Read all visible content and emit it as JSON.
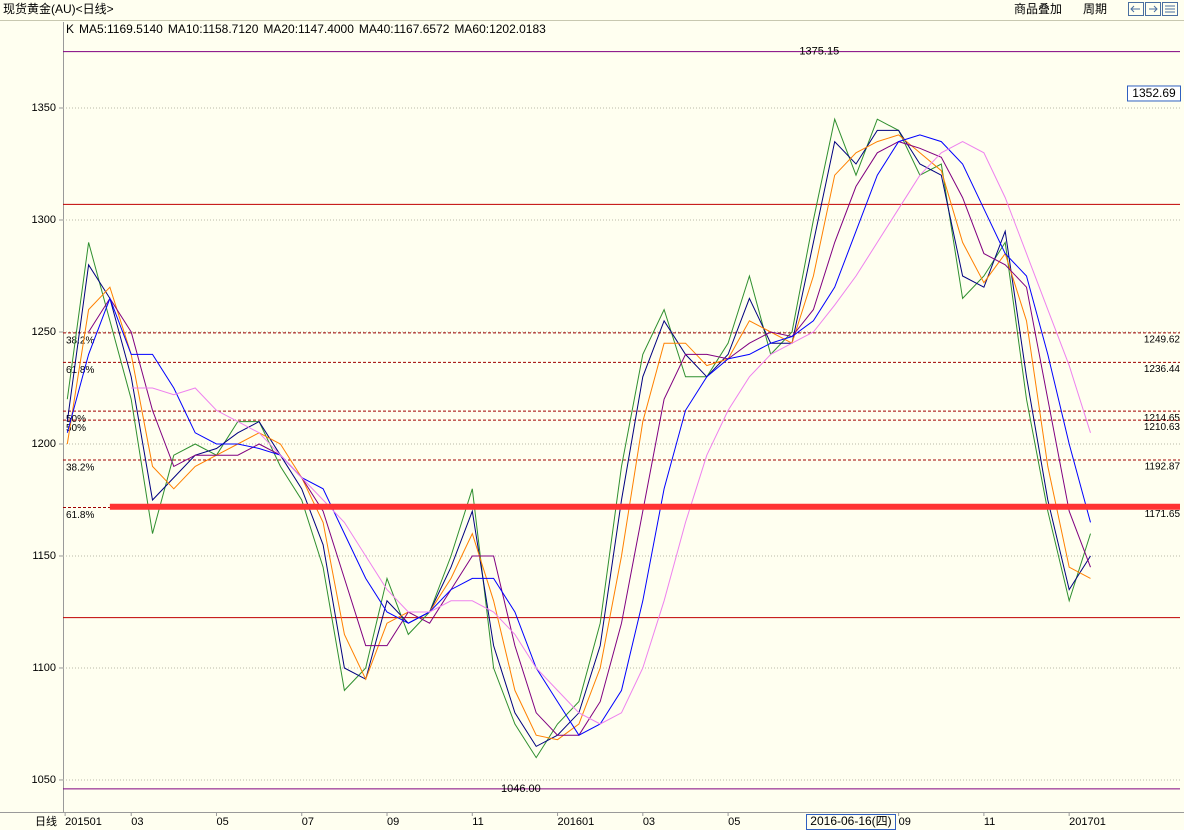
{
  "header": {
    "title": "现货黄金(AU)<日线>",
    "buttons": [
      "商品叠加",
      "周期"
    ]
  },
  "chart_data": {
    "type": "line",
    "period_label": "日线",
    "crosshair_label": "2016-06-16(四)",
    "xlim": [
      0.4,
      26.6
    ],
    "xticks": [
      {
        "value": 0.45,
        "label": "201501"
      },
      {
        "value": 2,
        "label": "03"
      },
      {
        "value": 4,
        "label": "05"
      },
      {
        "value": 6,
        "label": "07"
      },
      {
        "value": 8,
        "label": "09"
      },
      {
        "value": 10,
        "label": "11"
      },
      {
        "value": 12,
        "label": "201601"
      },
      {
        "value": 14,
        "label": "03"
      },
      {
        "value": 16,
        "label": "05"
      },
      {
        "value": 20,
        "label": "09"
      },
      {
        "value": 22,
        "label": "11"
      },
      {
        "value": 24,
        "label": "201701"
      }
    ],
    "ylim": [
      1035.7,
      1388.4
    ],
    "yticks": [
      1050,
      1100,
      1150,
      1200,
      1250,
      1300,
      1350
    ],
    "grid": true,
    "x": [
      0.5,
      1,
      1.5,
      2,
      2.5,
      3,
      3.5,
      4,
      4.5,
      5,
      5.5,
      6,
      6.5,
      7,
      7.5,
      8,
      8.5,
      9,
      9.5,
      10,
      10.5,
      11,
      11.5,
      12,
      12.5,
      13,
      13.5,
      14,
      14.5,
      15,
      15.5,
      16,
      16.5,
      17,
      17.5,
      18,
      18.5,
      19,
      19.5,
      20,
      20.5,
      21,
      21.5,
      22,
      22.5,
      23,
      23.5,
      24,
      24.5
    ],
    "series": [
      {
        "name": "K",
        "color": "#000000",
        "values": [
          1220,
          1290,
          1255,
          1220,
          1160,
          1195,
          1200,
          1195,
          1210,
          1210,
          1190,
          1175,
          1145,
          1090,
          1100,
          1140,
          1115,
          1125,
          1150,
          1180,
          1100,
          1075,
          1060,
          1075,
          1085,
          1120,
          1190,
          1240,
          1260,
          1230,
          1230,
          1245,
          1275,
          1240,
          1250,
          1300,
          1345,
          1320,
          1345,
          1340,
          1320,
          1325,
          1265,
          1275,
          1290,
          1220,
          1170,
          1130,
          1160
        ]
      },
      {
        "name": "MA5:1169.5140",
        "color": "#000080",
        "values": [
          1210,
          1280,
          1265,
          1230,
          1175,
          1185,
          1195,
          1198,
          1205,
          1210,
          1195,
          1180,
          1155,
          1100,
          1095,
          1130,
          1120,
          1125,
          1145,
          1170,
          1110,
          1080,
          1065,
          1070,
          1080,
          1110,
          1175,
          1230,
          1255,
          1240,
          1230,
          1240,
          1265,
          1245,
          1245,
          1290,
          1335,
          1325,
          1340,
          1340,
          1325,
          1320,
          1275,
          1270,
          1295,
          1230,
          1175,
          1135,
          1150
        ]
      },
      {
        "name": "MA10:1158.7120",
        "color": "#ff8000",
        "values": [
          1200,
          1260,
          1270,
          1240,
          1190,
          1180,
          1190,
          1195,
          1200,
          1205,
          1200,
          1185,
          1165,
          1115,
          1095,
          1120,
          1125,
          1125,
          1140,
          1160,
          1130,
          1090,
          1070,
          1068,
          1075,
          1100,
          1150,
          1210,
          1245,
          1245,
          1235,
          1238,
          1255,
          1250,
          1245,
          1275,
          1320,
          1330,
          1335,
          1338,
          1330,
          1322,
          1290,
          1272,
          1285,
          1255,
          1190,
          1145,
          1140
        ]
      },
      {
        "name": "MA20:1147.4000",
        "color": "#800080",
        "values": [
          null,
          1250,
          1265,
          1250,
          1215,
          1190,
          1195,
          1195,
          1195,
          1200,
          1195,
          1185,
          1170,
          1140,
          1110,
          1110,
          1125,
          1120,
          1135,
          1150,
          1150,
          1110,
          1080,
          1070,
          1070,
          1085,
          1120,
          1170,
          1220,
          1240,
          1240,
          1238,
          1245,
          1250,
          1248,
          1260,
          1290,
          1315,
          1330,
          1335,
          1332,
          1328,
          1310,
          1285,
          1280,
          1270,
          1220,
          1170,
          1145
        ]
      },
      {
        "name": "MA40:1167.6572",
        "color": "#0000ff",
        "values": [
          1205,
          1240,
          1265,
          1240,
          1240,
          1225,
          1205,
          1200,
          1200,
          1198,
          1195,
          1185,
          1180,
          1160,
          1140,
          1125,
          1120,
          1125,
          1135,
          1140,
          1140,
          1125,
          1100,
          1085,
          1070,
          1075,
          1090,
          1130,
          1180,
          1215,
          1230,
          1238,
          1240,
          1245,
          1248,
          1255,
          1270,
          1295,
          1320,
          1335,
          1338,
          1335,
          1325,
          1305,
          1285,
          1275,
          1240,
          1200,
          1165
        ]
      },
      {
        "name": "MA60:1202.0183",
        "color": "#ee82ee",
        "values": [
          null,
          null,
          null,
          1225,
          1225,
          1222,
          1225,
          1215,
          1210,
          1205,
          1195,
          1185,
          1175,
          1165,
          1150,
          1135,
          1125,
          1125,
          1130,
          1130,
          1125,
          1115,
          1100,
          1090,
          1080,
          1075,
          1080,
          1100,
          1130,
          1165,
          1195,
          1215,
          1230,
          1240,
          1245,
          1250,
          1262,
          1275,
          1290,
          1305,
          1320,
          1330,
          1335,
          1330,
          1310,
          1285,
          1260,
          1235,
          1205
        ]
      }
    ],
    "levels": [
      {
        "value": 1249.62,
        "ratio": "38.2%",
        "color": "#800080"
      },
      {
        "value": 1236.44,
        "ratio": "61.8%",
        "color": "#e00000"
      },
      {
        "value": 1214.65,
        "ratio": "50%",
        "color": "#e00000"
      },
      {
        "value": 1210.63,
        "ratio": "50%",
        "color": "#800080"
      },
      {
        "value": 1192.87,
        "ratio": "38.2%",
        "color": "#e00000"
      },
      {
        "value": 1171.65,
        "ratio": "61.8%",
        "color": "#800080"
      }
    ],
    "extremes": [
      {
        "value": 1375.15,
        "x": 18.7,
        "color": "#800080"
      },
      {
        "value": 1307,
        "color": "#c00000"
      },
      {
        "value": 1122.5,
        "color": "#c00000"
      },
      {
        "value": {
          "value": 1046,
          "label": "1046.00"
        },
        "x": 11.7,
        "color": "#800080"
      }
    ],
    "trend_line": {
      "value": 1172,
      "x": 1.5,
      "color": "#ff3333"
    },
    "last_price": 1352.69
  }
}
